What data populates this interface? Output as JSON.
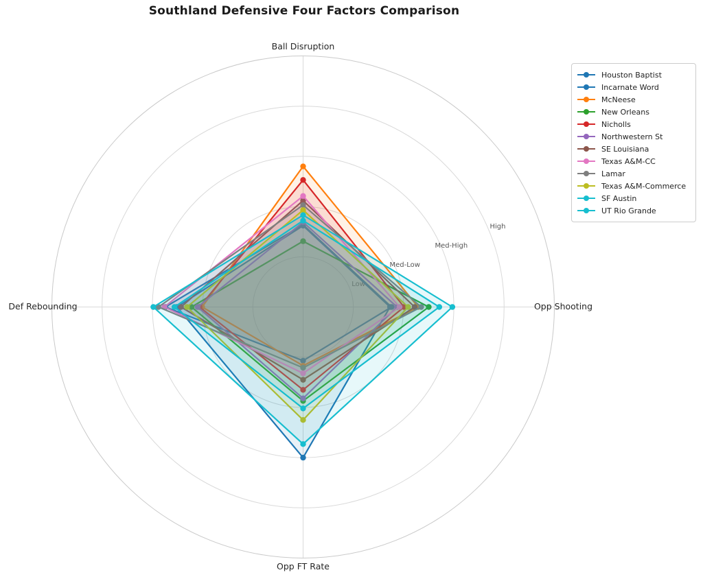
{
  "title": "Southland Defensive Four Factors Comparison",
  "chart_data": {
    "type": "radar",
    "title": "Southland Defensive Four Factors Comparison",
    "axes": [
      "Ball Disruption",
      "Opp Shooting",
      "Opp FT Rate",
      "Def Rebounding"
    ],
    "axis_angles_deg": [
      90,
      0,
      270,
      180
    ],
    "radial_axis": {
      "min": 0,
      "max": 5,
      "tick_values": [
        1,
        2,
        3,
        4
      ],
      "tick_labels": [
        "Low",
        "Med-Low",
        "Med-High",
        "High"
      ],
      "tick_label_angle_deg": 22.5
    },
    "grid": true,
    "legend_position": "upper right",
    "fill_alpha": 0.1,
    "series": [
      {
        "name": "Houston Baptist",
        "color": "#1f77b4",
        "values": [
          1.62,
          1.73,
          3.0,
          2.51
        ]
      },
      {
        "name": "Incarnate Word",
        "color": "#1f77b4",
        "values": [
          1.64,
          1.76,
          1.07,
          2.74
        ]
      },
      {
        "name": "McNeese",
        "color": "#ff7f0e",
        "values": [
          2.8,
          2.29,
          1.17,
          2.01
        ]
      },
      {
        "name": "New Orleans",
        "color": "#2ca02c",
        "values": [
          1.31,
          2.5,
          1.87,
          2.22
        ]
      },
      {
        "name": "Nicholls",
        "color": "#d62728",
        "values": [
          2.53,
          2.01,
          1.65,
          2.06
        ]
      },
      {
        "name": "Northwestern St",
        "color": "#9467bd",
        "values": [
          1.69,
          1.87,
          1.82,
          2.1
        ]
      },
      {
        "name": "SE Louisiana",
        "color": "#8c564b",
        "values": [
          2.12,
          2.22,
          1.45,
          2.43
        ]
      },
      {
        "name": "Texas A&M-CC",
        "color": "#e377c2",
        "values": [
          2.21,
          1.92,
          1.32,
          2.76
        ]
      },
      {
        "name": "Lamar",
        "color": "#7f7f7f",
        "values": [
          2.03,
          2.35,
          1.21,
          2.88
        ]
      },
      {
        "name": "Texas A&M-Commerce",
        "color": "#bcbd22",
        "values": [
          1.93,
          2.09,
          2.25,
          2.31
        ]
      },
      {
        "name": "SF Austin",
        "color": "#17becf",
        "values": [
          1.72,
          2.71,
          2.02,
          2.56
        ]
      },
      {
        "name": "UT Rio Grande",
        "color": "#17becf",
        "values": [
          1.83,
          2.97,
          2.73,
          2.98
        ]
      }
    ]
  },
  "style_colors": {
    "background": "#ffffff",
    "grid_line": "#d9d9d9",
    "outer_spine": "#c9c9c9",
    "title_text": "#1a1a1a",
    "axis_label_text": "#262626",
    "tick_label_text": "#555555",
    "legend_border": "#cccccc",
    "legend_text": "#222222"
  }
}
